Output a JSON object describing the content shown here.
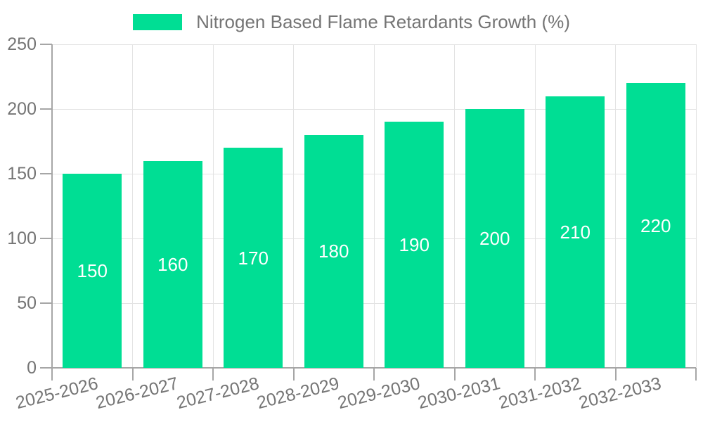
{
  "chart_data": {
    "type": "bar",
    "title": "",
    "categories": [
      "2025-2026",
      "2026-2027",
      "2027-2028",
      "2028-2029",
      "2029-2030",
      "2030-2031",
      "2031-2032",
      "2032-2033"
    ],
    "series": [
      {
        "name": "Nitrogen Based Flame Retardants Growth (%)",
        "color": "#00DE94",
        "values": [
          150,
          160,
          170,
          180,
          190,
          200,
          210,
          220
        ]
      }
    ],
    "xlabel": "",
    "ylabel": "",
    "ylim": [
      0,
      250
    ],
    "yticks": [
      0,
      50,
      100,
      150,
      200,
      250
    ],
    "grid": true,
    "legend_position": "top",
    "value_labels": "inside-center",
    "value_label_color": "#FFFFFF"
  },
  "colors": {
    "background": "#FFFFFF",
    "grid": "#E3E3E3",
    "axis": "#A6A6A6",
    "tick_label": "#757575",
    "bar": "#00DE94"
  }
}
